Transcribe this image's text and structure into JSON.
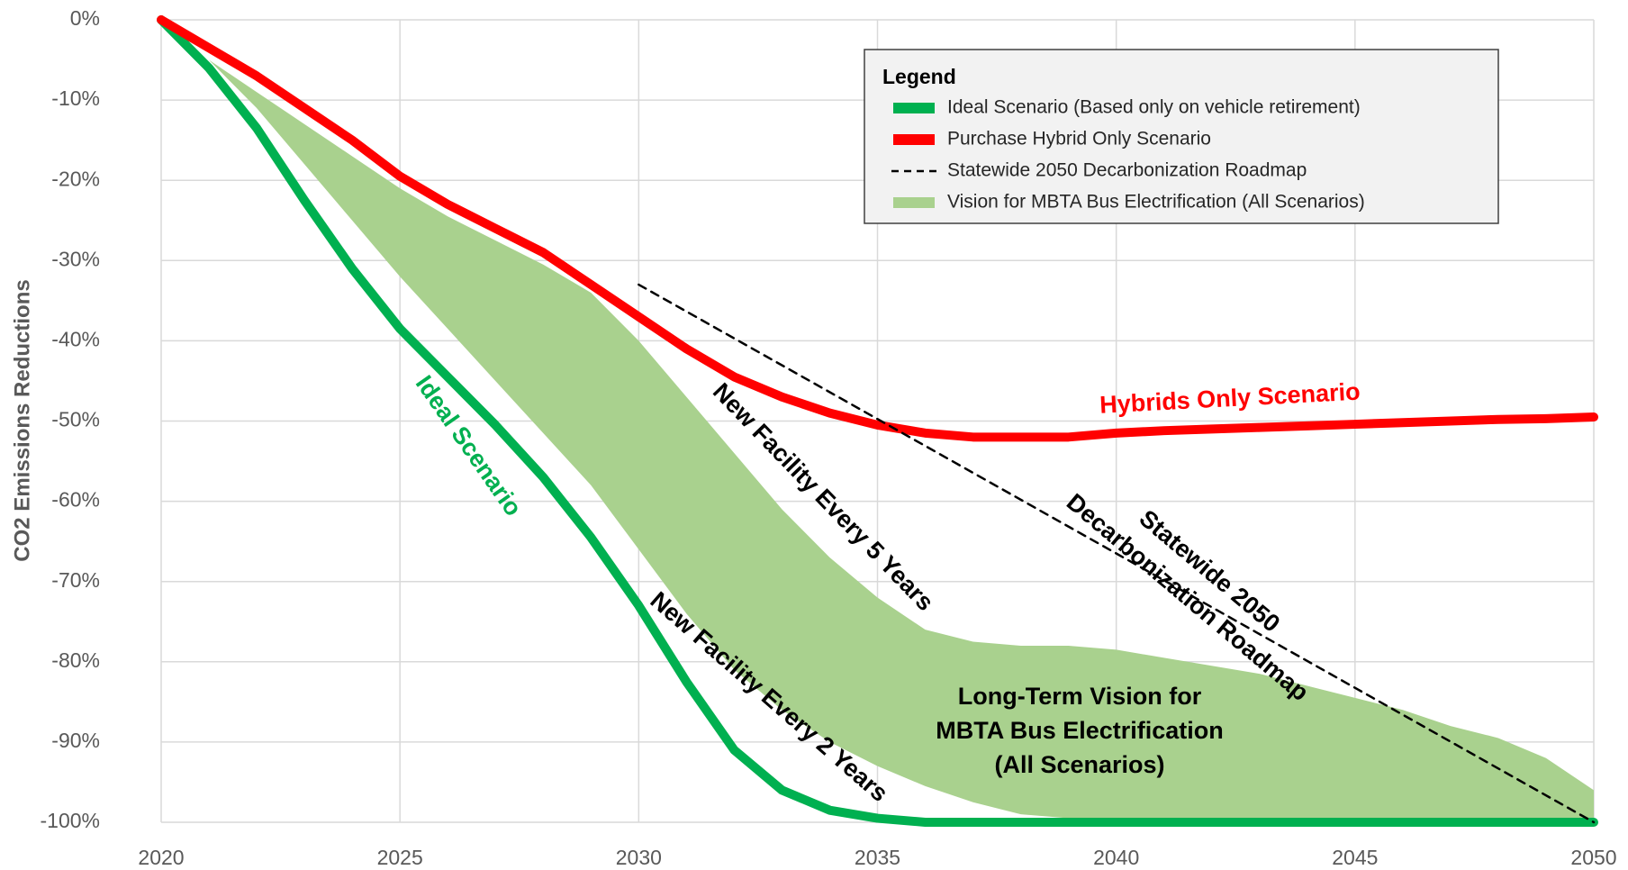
{
  "chart_data": {
    "type": "line",
    "y_label": "CO2 Emissions Reductions",
    "x": [
      2020,
      2021,
      2022,
      2023,
      2024,
      2025,
      2026,
      2027,
      2028,
      2029,
      2030,
      2031,
      2032,
      2033,
      2034,
      2035,
      2036,
      2037,
      2038,
      2039,
      2040,
      2041,
      2042,
      2043,
      2044,
      2045,
      2046,
      2047,
      2048,
      2049,
      2050
    ],
    "xlim": [
      2020,
      2050
    ],
    "xticks": [
      2020,
      2025,
      2030,
      2035,
      2040,
      2045,
      2050
    ],
    "ylim": [
      -100,
      0
    ],
    "yticks": [
      {
        "value": 0,
        "label": "0%"
      },
      {
        "value": -10,
        "label": "-10%"
      },
      {
        "value": -20,
        "label": "-20%"
      },
      {
        "value": -30,
        "label": "-30%"
      },
      {
        "value": -40,
        "label": "-40%"
      },
      {
        "value": -50,
        "label": "-50%"
      },
      {
        "value": -60,
        "label": "-60%"
      },
      {
        "value": -70,
        "label": "-70%"
      },
      {
        "value": -80,
        "label": "-80%"
      },
      {
        "value": -90,
        "label": "-90%"
      },
      {
        "value": -100,
        "label": "-100%"
      }
    ],
    "grid": true,
    "legend_title": "Legend",
    "series": [
      {
        "name": "Ideal Scenario (Based only on vehicle retirement)",
        "color": "#00b050",
        "style": "line",
        "values": [
          0,
          -6,
          -13.5,
          -22.5,
          -31,
          -38.5,
          -44.5,
          -50.5,
          -57,
          -64.5,
          -73,
          -82.5,
          -91,
          -96,
          -98.5,
          -99.5,
          -100,
          -100,
          -100,
          -100,
          -100,
          -100,
          -100,
          -100,
          -100,
          -100,
          -100,
          -100,
          -100,
          -100,
          -100
        ]
      },
      {
        "name": "Purchase Hybrid Only Scenario",
        "color": "#ff0000",
        "style": "line",
        "values": [
          0,
          -3.5,
          -7,
          -11,
          -15,
          -19.5,
          -23,
          -26,
          -29,
          -33,
          -37,
          -41,
          -44.5,
          -47,
          -49,
          -50.5,
          -51.5,
          -52,
          -52,
          -52,
          -51.5,
          -51.2,
          -51,
          -50.8,
          -50.6,
          -50.4,
          -50.2,
          -50,
          -49.8,
          -49.7,
          -49.5
        ]
      },
      {
        "name": "Statewide 2050 Decarbonization Roadmap",
        "color": "#000000",
        "style": "dashed",
        "x": [
          2030,
          2050
        ],
        "values": [
          -33,
          -100
        ]
      },
      {
        "name": "Vision for MBTA Bus Electrification (All Scenarios)",
        "color": "#a9d18e",
        "style": "band",
        "values": [
          0,
          -5,
          -9,
          -13,
          -17,
          -21,
          -24.5,
          -27.5,
          -30.5,
          -34,
          -40,
          -47,
          -54,
          -61,
          -67,
          -72,
          -76,
          -77.5,
          -78,
          -78,
          -78.5,
          -79.5,
          -80.5,
          -81.5,
          -83,
          -84.5,
          -86,
          -88,
          -89.5,
          -92,
          -96
        ],
        "lower": [
          0,
          -5,
          -11,
          -18,
          -25,
          -32,
          -38.5,
          -45,
          -51.5,
          -58,
          -66,
          -74,
          -81,
          -86,
          -90,
          -93,
          -95.5,
          -97.5,
          -99,
          -99.5,
          -100,
          -100,
          -100,
          -100,
          -100,
          -100,
          -100,
          -100,
          -100,
          -100,
          -100
        ]
      }
    ],
    "annotations": [
      [
        "Ideal Scenario"
      ],
      [
        "Hybrids Only Scenario"
      ],
      [
        "New Facility Every 5 Years"
      ],
      [
        "New Facility Every 2 Years"
      ],
      [
        "Statewide 2050",
        "Decarbonization Roadmap"
      ],
      [
        "Long-Term Vision for",
        "MBTA Bus Electrification",
        "(All Scenarios)"
      ]
    ]
  }
}
